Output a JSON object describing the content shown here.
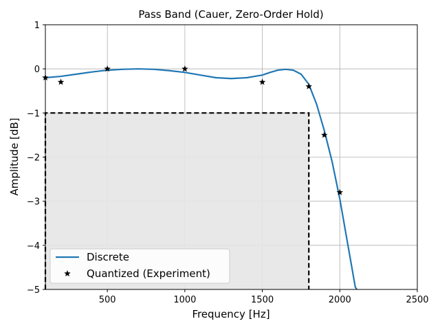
{
  "chart_data": {
    "type": "line",
    "title": "Pass Band (Cauer, Zero-Order Hold)",
    "xlabel": "Frequency [Hz]",
    "ylabel": "Amplitude [dB]",
    "xlim": [
      100,
      2500
    ],
    "ylim": [
      -5,
      1
    ],
    "xticks": [
      500,
      1000,
      1500,
      2000,
      2500
    ],
    "xtick_labels": [
      "500",
      "1000",
      "1500",
      "2000",
      "2500"
    ],
    "yticks": [
      -5,
      -4,
      -3,
      -2,
      -1,
      0,
      1
    ],
    "ytick_labels": [
      "−5",
      "−4",
      "−3",
      "−2",
      "−1",
      "0",
      "1"
    ],
    "grid": true,
    "legend_position": "lower-left",
    "series": [
      {
        "name": "Discrete",
        "style": "line",
        "color": "#1f77b4",
        "x": [
          100,
          200,
          300,
          400,
          500,
          600,
          700,
          800,
          900,
          1000,
          1100,
          1200,
          1300,
          1400,
          1500,
          1550,
          1600,
          1650,
          1700,
          1750,
          1800,
          1850,
          1900,
          1950,
          2000,
          2050,
          2100,
          2110
        ],
        "y": [
          -0.2,
          -0.17,
          -0.12,
          -0.07,
          -0.03,
          -0.01,
          0.0,
          -0.01,
          -0.04,
          -0.08,
          -0.14,
          -0.2,
          -0.22,
          -0.2,
          -0.14,
          -0.08,
          -0.03,
          -0.01,
          -0.03,
          -0.12,
          -0.35,
          -0.8,
          -1.4,
          -2.1,
          -2.95,
          -3.95,
          -4.95,
          -5.0
        ]
      },
      {
        "name": "Quantized (Experiment)",
        "style": "markers",
        "marker": "star",
        "color": "#000000",
        "x": [
          100,
          200,
          500,
          1000,
          1500,
          1800,
          1900,
          2000
        ],
        "y": [
          -0.2,
          -0.3,
          0.0,
          0.0,
          -0.3,
          -0.4,
          -1.5,
          -2.8
        ]
      }
    ],
    "shaded_region": {
      "x": [
        100,
        1800
      ],
      "y": [
        -5,
        -1
      ],
      "fill": "#e5e5e5",
      "border_color": "#000000"
    }
  }
}
